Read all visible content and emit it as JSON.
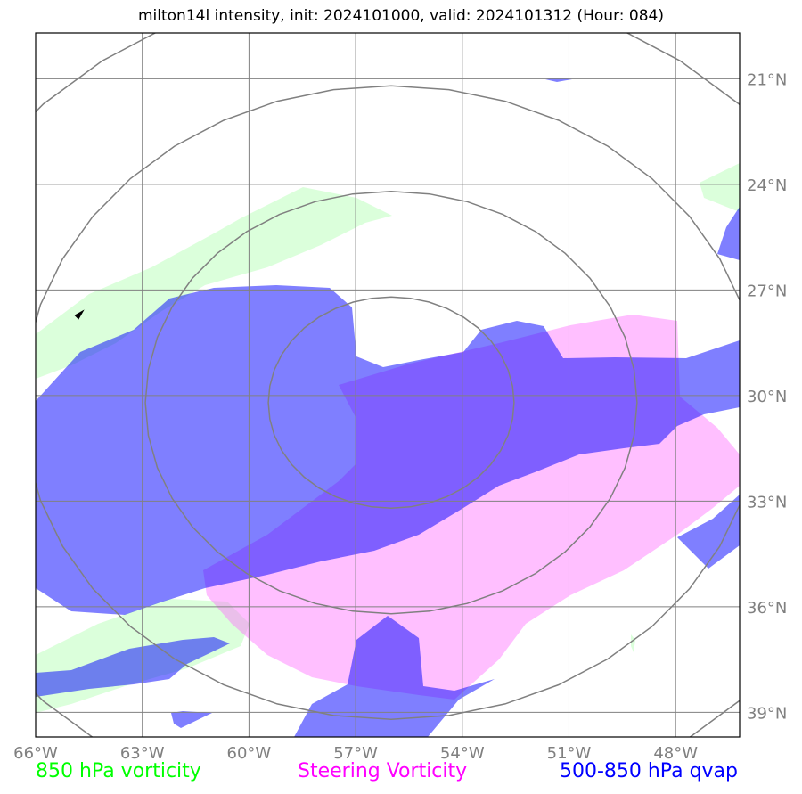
{
  "title": "milton14l intensity, init: 2024101000, valid: 2024101312 (Hour: 084)",
  "x_ticks": [
    "66°W",
    "63°W",
    "60°W",
    "57°W",
    "54°W",
    "51°W",
    "48°W"
  ],
  "y_ticks": [
    "39°N",
    "36°N",
    "33°N",
    "30°N",
    "27°N",
    "24°N",
    "21°N"
  ],
  "legend": {
    "vorticity_850": {
      "label": "850 hPa vorticity",
      "color": "#00ff00"
    },
    "steering": {
      "label": "Steering Vorticity",
      "color": "#ff00ff"
    },
    "qvap": {
      "label": "500-850 hPa qvap",
      "color": "#0000ff"
    }
  },
  "map": {
    "lon_range": [
      -66,
      -46.2
    ],
    "lat_range": [
      20.3,
      40.3
    ],
    "grid_lons": [
      -66,
      -63,
      -60,
      -57,
      -54,
      -51,
      -48
    ],
    "grid_lats": [
      21,
      24,
      27,
      30,
      33,
      36,
      39
    ],
    "range_ring_center": {
      "lon": -56,
      "lat": 29.8
    },
    "range_ring_radii_deg": [
      3,
      6,
      9,
      12
    ]
  }
}
